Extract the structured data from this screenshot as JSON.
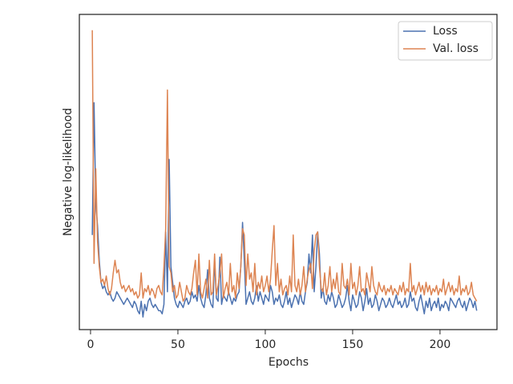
{
  "chart_data": {
    "type": "line",
    "xlabel": "Epochs",
    "ylabel": "Negative log-likelihood",
    "xlim": [
      -6.4,
      232.6
    ],
    "xticks": [
      0,
      50,
      100,
      150,
      200
    ],
    "ylim": [
      0,
      100
    ],
    "legend": "upper right",
    "x": [
      1,
      2,
      3,
      4,
      5,
      6,
      7,
      8,
      9,
      10,
      11,
      12,
      13,
      14,
      15,
      16,
      17,
      18,
      19,
      20,
      21,
      22,
      23,
      24,
      25,
      26,
      27,
      28,
      29,
      30,
      31,
      32,
      33,
      34,
      35,
      36,
      37,
      38,
      39,
      40,
      41,
      42,
      43,
      44,
      45,
      46,
      47,
      48,
      49,
      50,
      51,
      52,
      53,
      54,
      55,
      56,
      57,
      58,
      59,
      60,
      61,
      62,
      63,
      64,
      65,
      66,
      67,
      68,
      69,
      70,
      71,
      72,
      73,
      74,
      75,
      76,
      77,
      78,
      79,
      80,
      81,
      82,
      83,
      84,
      85,
      86,
      87,
      88,
      89,
      90,
      91,
      92,
      93,
      94,
      95,
      96,
      97,
      98,
      99,
      100,
      101,
      102,
      103,
      104,
      105,
      106,
      107,
      108,
      109,
      110,
      111,
      112,
      113,
      114,
      115,
      116,
      117,
      118,
      119,
      120,
      121,
      122,
      123,
      124,
      125,
      126,
      127,
      128,
      129,
      130,
      131,
      132,
      133,
      134,
      135,
      136,
      137,
      138,
      139,
      140,
      141,
      142,
      143,
      144,
      145,
      146,
      147,
      148,
      149,
      150,
      151,
      152,
      153,
      154,
      155,
      156,
      157,
      158,
      159,
      160,
      161,
      162,
      163,
      164,
      165,
      166,
      167,
      168,
      169,
      170,
      171,
      172,
      173,
      174,
      175,
      176,
      177,
      178,
      179,
      180,
      181,
      182,
      183,
      184,
      185,
      186,
      187,
      188,
      189,
      190,
      191,
      192,
      193,
      194,
      195,
      196,
      197,
      198,
      199,
      200,
      201,
      202,
      203,
      204,
      205,
      206,
      207,
      208,
      209,
      210,
      211,
      212,
      213,
      214,
      215,
      216,
      217,
      218,
      219,
      220,
      221
    ],
    "series": [
      {
        "name": "Loss",
        "color": "#4c72b0",
        "values": [
          30,
          72,
          40,
          33,
          22,
          15,
          13,
          14,
          12,
          11,
          12,
          10,
          9,
          10,
          12,
          11,
          10,
          9,
          8,
          9,
          10,
          9,
          8,
          7,
          9,
          8,
          6,
          5,
          9,
          4,
          8,
          6,
          9,
          10,
          8,
          7,
          8,
          7,
          6,
          6,
          5,
          8,
          31,
          12,
          54,
          20,
          15,
          10,
          8,
          7,
          9,
          8,
          7,
          9,
          10,
          8,
          9,
          12,
          10,
          11,
          9,
          14,
          10,
          8,
          7,
          11,
          19,
          10,
          8,
          7,
          22,
          10,
          9,
          23,
          8,
          11,
          10,
          9,
          12,
          10,
          8,
          10,
          9,
          11,
          12,
          20,
          34,
          22,
          8,
          10,
          12,
          9,
          8,
          10,
          14,
          9,
          12,
          10,
          8,
          11,
          10,
          9,
          14,
          12,
          8,
          10,
          9,
          11,
          8,
          7,
          9,
          12,
          8,
          10,
          7,
          9,
          11,
          10,
          8,
          12,
          9,
          8,
          12,
          15,
          24,
          18,
          30,
          12,
          20,
          31,
          24,
          10,
          13,
          9,
          8,
          11,
          9,
          12,
          10,
          7,
          8,
          11,
          9,
          7,
          8,
          10,
          14,
          9,
          6,
          11,
          9,
          7,
          8,
          12,
          10,
          6,
          9,
          13,
          8,
          10,
          7,
          8,
          11,
          9,
          6,
          8,
          10,
          9,
          7,
          8,
          10,
          8,
          7,
          9,
          11,
          8,
          9,
          7,
          8,
          10,
          7,
          8,
          12,
          9,
          10,
          7,
          6,
          9,
          11,
          8,
          5,
          9,
          7,
          10,
          6,
          8,
          9,
          7,
          10,
          6,
          8,
          7,
          9,
          8,
          6,
          10,
          9,
          8,
          7,
          9,
          10,
          8,
          7,
          9,
          6,
          8,
          10,
          9,
          7,
          9,
          6
        ]
      },
      {
        "name": "Val. loss",
        "color": "#dd8452",
        "values": [
          95,
          21,
          51,
          28,
          20,
          15,
          16,
          14,
          17,
          13,
          11,
          13,
          18,
          22,
          18,
          19,
          15,
          13,
          14,
          12,
          13,
          14,
          12,
          13,
          11,
          12,
          10,
          11,
          18,
          10,
          13,
          12,
          14,
          11,
          13,
          12,
          10,
          13,
          14,
          12,
          11,
          20,
          32,
          76,
          20,
          18,
          12,
          14,
          10,
          11,
          15,
          12,
          9,
          10,
          14,
          12,
          11,
          13,
          18,
          22,
          11,
          24,
          12,
          10,
          13,
          16,
          10,
          22,
          11,
          12,
          24,
          11,
          14,
          18,
          24,
          10,
          13,
          15,
          11,
          21,
          12,
          14,
          10,
          18,
          13,
          20,
          32,
          30,
          14,
          24,
          16,
          18,
          12,
          21,
          11,
          15,
          13,
          17,
          12,
          14,
          17,
          12,
          16,
          25,
          33,
          14,
          21,
          12,
          16,
          11,
          13,
          14,
          11,
          17,
          12,
          30,
          14,
          12,
          16,
          11,
          14,
          20,
          12,
          16,
          19,
          21,
          13,
          25,
          30,
          31,
          20,
          13,
          12,
          18,
          11,
          14,
          20,
          12,
          16,
          13,
          18,
          12,
          11,
          21,
          14,
          13,
          16,
          11,
          21,
          13,
          15,
          11,
          14,
          20,
          12,
          13,
          11,
          18,
          15,
          12,
          20,
          14,
          12,
          11,
          15,
          13,
          12,
          14,
          11,
          13,
          12,
          14,
          11,
          13,
          12,
          11,
          14,
          12,
          15,
          11,
          13,
          12,
          21,
          12,
          14,
          11,
          13,
          15,
          12,
          14,
          11,
          15,
          12,
          14,
          11,
          13,
          12,
          14,
          11,
          13,
          12,
          16,
          11,
          13,
          15,
          12,
          14,
          11,
          13,
          12,
          17,
          11,
          13,
          12,
          14,
          11,
          12,
          15,
          11,
          10,
          9
        ]
      }
    ]
  }
}
